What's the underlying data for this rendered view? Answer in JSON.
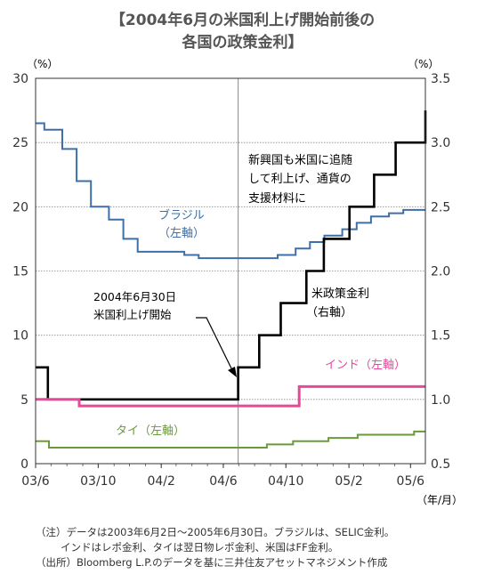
{
  "title_line1": "【2004年6月の米国利上げ開始前後の",
  "title_line2": "各国の政策金利】",
  "chart_data": {
    "type": "line",
    "left_axis": {
      "unit": "（%）",
      "ylim": [
        0,
        30
      ],
      "ticks": [
        "0",
        "5",
        "10",
        "15",
        "20",
        "25",
        "30"
      ]
    },
    "right_axis": {
      "unit": "（%）",
      "ylim": [
        0.5,
        3.5
      ],
      "ticks": [
        "0.5",
        "1.0",
        "1.5",
        "2.0",
        "2.5",
        "3.0",
        "3.5"
      ]
    },
    "x_axis": {
      "unit": "（年/月）",
      "ticks": [
        "03/6",
        "03/10",
        "04/2",
        "04/6",
        "04/10",
        "05/2",
        "05/6"
      ]
    },
    "grid": true,
    "marker_date": "04/6",
    "series": [
      {
        "name": "ブラジル",
        "label_line1": "ブラジル",
        "label_line2": "（左軸）",
        "axis": "left",
        "color": "#3d6fa8",
        "points": [
          [
            "2003-06-01",
            26.5
          ],
          [
            "2003-06-18",
            26.0
          ],
          [
            "2003-07-23",
            24.5
          ],
          [
            "2003-08-20",
            22.0
          ],
          [
            "2003-09-17",
            20.0
          ],
          [
            "2003-10-22",
            19.0
          ],
          [
            "2003-11-19",
            17.5
          ],
          [
            "2003-12-17",
            16.5
          ],
          [
            "2004-01-21",
            16.5
          ],
          [
            "2004-03-17",
            16.25
          ],
          [
            "2004-04-14",
            16.0
          ],
          [
            "2004-06-30",
            16.0
          ],
          [
            "2004-09-15",
            16.25
          ],
          [
            "2004-10-20",
            16.75
          ],
          [
            "2004-11-17",
            17.25
          ],
          [
            "2004-12-15",
            17.75
          ],
          [
            "2005-01-19",
            18.25
          ],
          [
            "2005-02-16",
            18.75
          ],
          [
            "2005-03-16",
            19.25
          ],
          [
            "2005-04-20",
            19.5
          ],
          [
            "2005-05-18",
            19.75
          ],
          [
            "2005-06-30",
            19.75
          ]
        ]
      },
      {
        "name": "米政策金利",
        "label_line1": "米政策金利",
        "label_line2": "（右軸）",
        "axis": "right",
        "color": "#000000",
        "points": [
          [
            "2003-06-01",
            1.25
          ],
          [
            "2003-06-25",
            1.0
          ],
          [
            "2004-06-30",
            1.25
          ],
          [
            "2004-08-10",
            1.5
          ],
          [
            "2004-09-21",
            1.75
          ],
          [
            "2004-11-10",
            2.0
          ],
          [
            "2004-12-14",
            2.25
          ],
          [
            "2005-02-02",
            2.5
          ],
          [
            "2005-03-22",
            2.75
          ],
          [
            "2005-05-03",
            3.0
          ],
          [
            "2005-06-30",
            3.25
          ]
        ]
      },
      {
        "name": "インド",
        "label_line1": "インド（左軸）",
        "axis": "left",
        "color": "#e8479a",
        "points": [
          [
            "2003-06-01",
            5.0
          ],
          [
            "2003-08-25",
            4.5
          ],
          [
            "2004-10-27",
            6.0
          ],
          [
            "2005-06-30",
            6.0
          ]
        ]
      },
      {
        "name": "タイ",
        "label_line1": "タイ（左軸）",
        "axis": "left",
        "color": "#6a9a3a",
        "points": [
          [
            "2003-06-01",
            1.75
          ],
          [
            "2003-06-27",
            1.25
          ],
          [
            "2004-08-25",
            1.5
          ],
          [
            "2004-10-15",
            1.75
          ],
          [
            "2004-12-23",
            2.0
          ],
          [
            "2005-02-04",
            2.0
          ],
          [
            "2005-02-18",
            2.25
          ],
          [
            "2005-06-08",
            2.5
          ],
          [
            "2005-06-30",
            2.5
          ]
        ]
      }
    ],
    "annotations": {
      "start_line1": "2004年6月30日",
      "start_line2": "米国利上げ開始",
      "em_line1": "新興国も米国に追随",
      "em_line2": "して利上げ、通貨の",
      "em_line3": "支援材料に"
    }
  },
  "notes": {
    "line1": "（注）データは2003年6月2日～2005年6月30日。ブラジルは、SELIC金利。",
    "line2": "インドはレポ金利、タイは翌日物レポ金利、米国はFF金利。",
    "line3": "（出所）Bloomberg L.P.のデータを基に三井住友アセットマネジメント作成"
  }
}
